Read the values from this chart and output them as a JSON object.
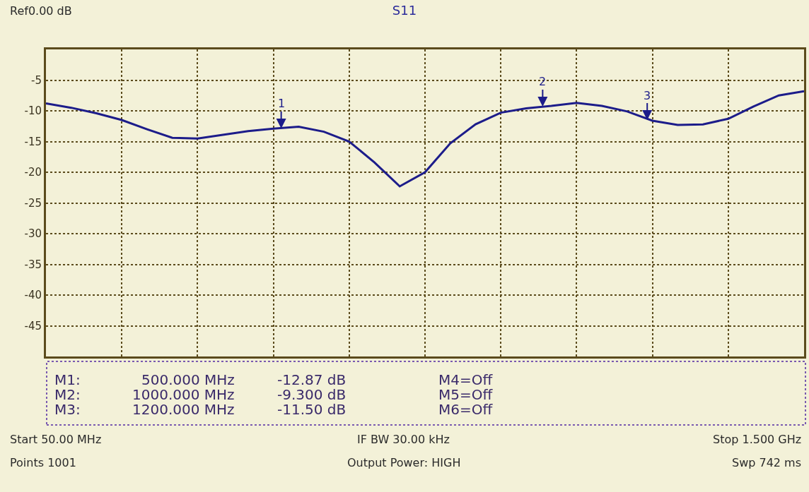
{
  "chart_data": {
    "type": "line",
    "title": "S11",
    "categories": [
      null,
      null,
      null,
      null,
      null,
      null,
      null,
      null,
      null,
      null,
      null,
      null,
      null,
      null,
      null,
      null,
      null,
      null,
      null,
      null,
      null,
      null,
      null,
      null,
      null,
      null,
      null,
      null,
      null,
      null,
      null
    ],
    "series": [
      {
        "color": "#1c1c8a",
        "values": [
          -8.8,
          -9.5,
          -10.4,
          -11.5,
          -13.0,
          -14.4,
          -14.5,
          -13.9,
          -13.3,
          -12.9,
          -12.6,
          -13.4,
          -15.0,
          -18.4,
          -22.3,
          -20.0,
          -15.3,
          -12.2,
          -10.3,
          -9.6,
          -9.2,
          -8.7,
          -9.2,
          -10.1,
          -11.6,
          -12.3,
          -12.2,
          -11.3,
          -9.3,
          -7.5,
          -6.8
        ]
      }
    ],
    "ylim": [
      -50,
      0
    ],
    "yticks": [
      -5,
      -10,
      -15,
      -20,
      -25,
      -30,
      -35,
      -40,
      -45
    ],
    "tick_labels": "y",
    "grid": true,
    "annotations": [
      {
        "text": "1",
        "y": -12.87
      },
      {
        "text": "2",
        "y": -9.3
      },
      {
        "text": "3",
        "y": -11.5
      },
      "Ref0.00 dB",
      "M1:",
      "500.000 MHz",
      "-12.87 dB",
      "M4=Off",
      "M2:",
      "1000.000 MHz",
      "-9.300 dB",
      "M5=Off",
      "M3:",
      "1200.000 MHz",
      "-11.50 dB",
      "M6=Off",
      "Start 50.00 MHz",
      "IF BW 30.00 kHz",
      "Stop 1.500 GHz",
      "Points 1001",
      "Output Power: HIGH",
      "Swp 742 ms"
    ]
  }
}
